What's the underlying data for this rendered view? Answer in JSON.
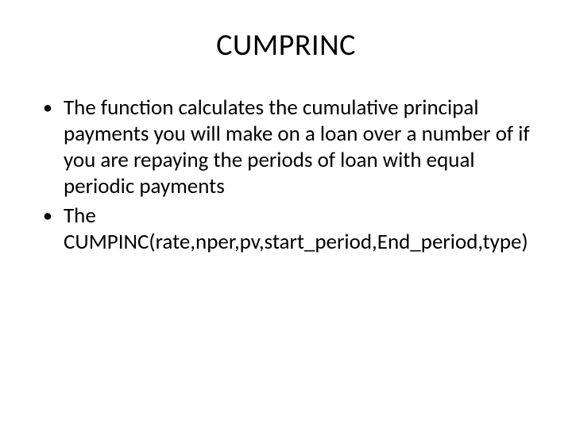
{
  "slide": {
    "title": "CUMPRINC",
    "bullets": [
      "The function calculates the cumulative principal payments you will make on a loan over a number of if you are repaying the periods of loan with equal periodic payments",
      "The CUMPINC(rate,nper,pv,start_period,End_period,type)"
    ],
    "text_color": "#000000",
    "background_color": "#ffffff",
    "title_fontsize": 38,
    "body_fontsize": 27,
    "font_family": "Calibri"
  }
}
